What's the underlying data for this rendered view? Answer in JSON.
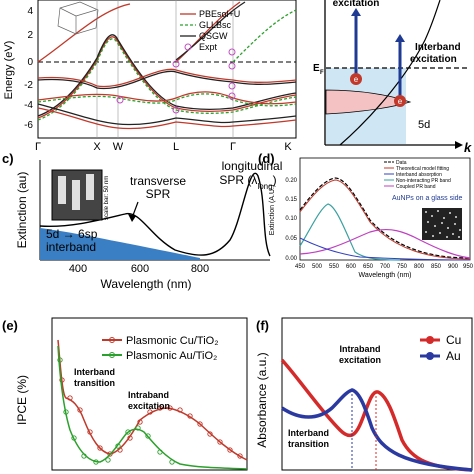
{
  "panels": {
    "a": {
      "ylabel": "Energy (eV)",
      "yticks": [
        "4",
        "2",
        "0",
        "-2",
        "-4",
        "-6"
      ],
      "xticks": [
        "Γ",
        "X",
        "W",
        "L",
        "Γ",
        "K"
      ],
      "legend": [
        "PBEsol+U",
        "GLLBsc",
        "QSGW",
        "Expt"
      ],
      "colors": {
        "pbesol": "#c0392b",
        "gllbsc": "#2ca02c",
        "qsgw": "#222222",
        "expt": "#c050c0"
      }
    },
    "b": {
      "labels": {
        "excitation": "excitation",
        "interband": "Interband",
        "interband2": "excitation",
        "ef": "E",
        "ef_sub": "F",
        "d": "5d",
        "k": "k"
      }
    },
    "c": {
      "letter": "c)",
      "ylabel": "Extinction (au)",
      "xlabel": "Wavelength (nm)",
      "xticks": [
        "400",
        "600",
        "800"
      ],
      "long_label1": "longitudinal",
      "long_label2": "SPR (λ",
      "long_label2_sub": "long",
      "long_label2_end": ")",
      "trans_label1": "transverse",
      "trans_label2": "SPR",
      "inter_label1": "5d → 6sp",
      "inter_label2": "interband",
      "scale_text": "scale bar: 50 nm"
    },
    "d": {
      "letter": "(d)",
      "ylabel": "Extinction (A.U.)",
      "xlabel": "Wavelength (nm)",
      "yticks": [
        "0.20",
        "0.15",
        "0.10",
        "0.05",
        "0.00"
      ],
      "xticks": [
        "450",
        "500",
        "550",
        "600",
        "650",
        "700",
        "750",
        "800",
        "850",
        "900",
        "950"
      ],
      "legend": [
        "Data",
        "Theoretical model fitting",
        "Interband absorption",
        "Non-interacting PR band",
        "Coupled PR band"
      ],
      "inset_text": "AuNPs on a glass side"
    },
    "e": {
      "letter": "(e)",
      "ylabel": "IPCE (%)",
      "legend": [
        "Plasmonic Cu/TiO₂",
        "Plasmonic Au/TiO₂"
      ],
      "ann1a": "Interband",
      "ann1b": "transition",
      "ann2a": "Intraband",
      "ann2b": "excitation"
    },
    "f": {
      "letter": "(f)",
      "ylabel": "Absorbance (a.u.)",
      "legend": [
        "Cu",
        "Au"
      ],
      "ann1a": "Intraband",
      "ann1b": "excitation",
      "ann2a": "Interband",
      "ann2b": "transition"
    }
  }
}
